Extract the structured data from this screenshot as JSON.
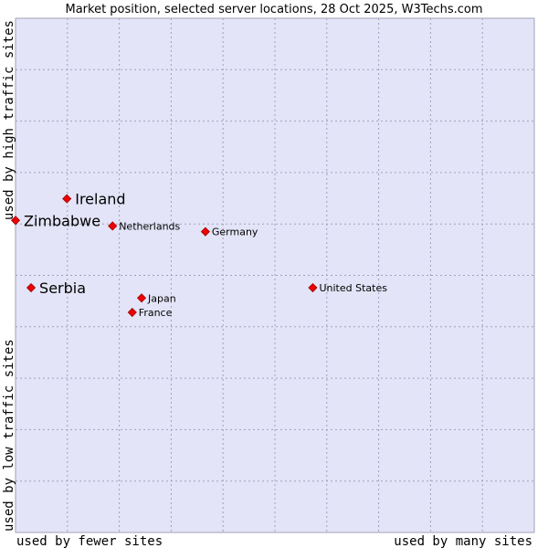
{
  "chart_data": {
    "type": "scatter",
    "title": "Market position, selected server locations, 28 Oct 2025, W3Techs.com",
    "xlabel_left": "used by fewer sites",
    "xlabel_right": "used by many sites",
    "ylabel_bottom": "used by low traffic sites",
    "ylabel_top": "used by high traffic sites",
    "xlim": [
      0,
      100
    ],
    "ylim": [
      0,
      100
    ],
    "grid": true,
    "colors": {
      "plot_bg": "#e4e4f8",
      "grid": "#a0a0b8",
      "point": "#ee0000",
      "point_edge": "#990000",
      "text": "#000000"
    },
    "points": [
      {
        "label": "Ireland",
        "x": 9.9,
        "y": 64.9,
        "highlight": true
      },
      {
        "label": "Zimbabwe",
        "x": 0.0,
        "y": 60.7,
        "highlight": true
      },
      {
        "label": "Netherlands",
        "x": 18.7,
        "y": 59.6,
        "highlight": false
      },
      {
        "label": "Germany",
        "x": 36.6,
        "y": 58.5,
        "highlight": false
      },
      {
        "label": "Serbia",
        "x": 3.0,
        "y": 47.6,
        "highlight": true
      },
      {
        "label": "United States",
        "x": 57.3,
        "y": 47.6,
        "highlight": false
      },
      {
        "label": "Japan",
        "x": 24.3,
        "y": 45.6,
        "highlight": false
      },
      {
        "label": "France",
        "x": 22.5,
        "y": 42.8,
        "highlight": false
      }
    ]
  }
}
